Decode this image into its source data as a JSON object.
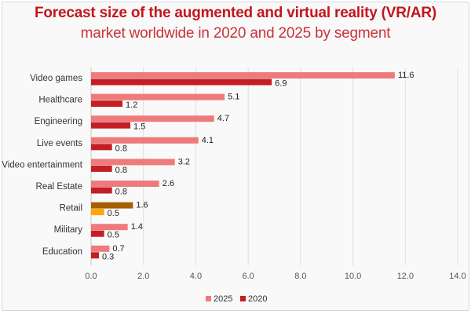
{
  "chart_data": {
    "type": "bar",
    "orientation": "horizontal",
    "title": "Forecast size of the augmented and virtual reality (VR/AR)",
    "subtitle": "market worldwide in 2020 and 2025 by segment",
    "xlabel": "",
    "ylabel": "",
    "xlim": [
      0,
      14
    ],
    "x_ticks": [
      "0.0",
      "2.0",
      "4.0",
      "6.0",
      "8.0",
      "10.0",
      "12.0",
      "14.0"
    ],
    "grid": true,
    "legend_position": "bottom-center",
    "categories": [
      "Video games",
      "Healthcare",
      "Engineering",
      "Live events",
      "Video entertainment",
      "Real Estate",
      "Retail",
      "Military",
      "Education"
    ],
    "series": [
      {
        "name": "2025",
        "color": "#ef7a7c",
        "values": [
          11.6,
          5.1,
          4.7,
          4.1,
          3.2,
          2.6,
          1.6,
          1.4,
          0.7
        ]
      },
      {
        "name": "2020",
        "color": "#c41e24",
        "values": [
          6.9,
          1.2,
          1.5,
          0.8,
          0.8,
          0.8,
          0.5,
          0.5,
          0.3
        ]
      }
    ],
    "highlight": {
      "category": "Retail",
      "colors": {
        "2025": "#a65f00",
        "2020": "#ffa600"
      }
    },
    "value_labels": {
      "2025": [
        "11.6",
        "5.1",
        "4.7",
        "4.1",
        "3.2",
        "2.6",
        "1.6",
        "1.4",
        "0.7"
      ],
      "2020": [
        "6.9",
        "1.2",
        "1.5",
        "0.8",
        "0.8",
        "0.8",
        "0.5",
        "0.5",
        "0.3"
      ]
    }
  },
  "legend": [
    {
      "label": "2025",
      "color": "#ef7a7c"
    },
    {
      "label": "2020",
      "color": "#c41e24"
    }
  ]
}
